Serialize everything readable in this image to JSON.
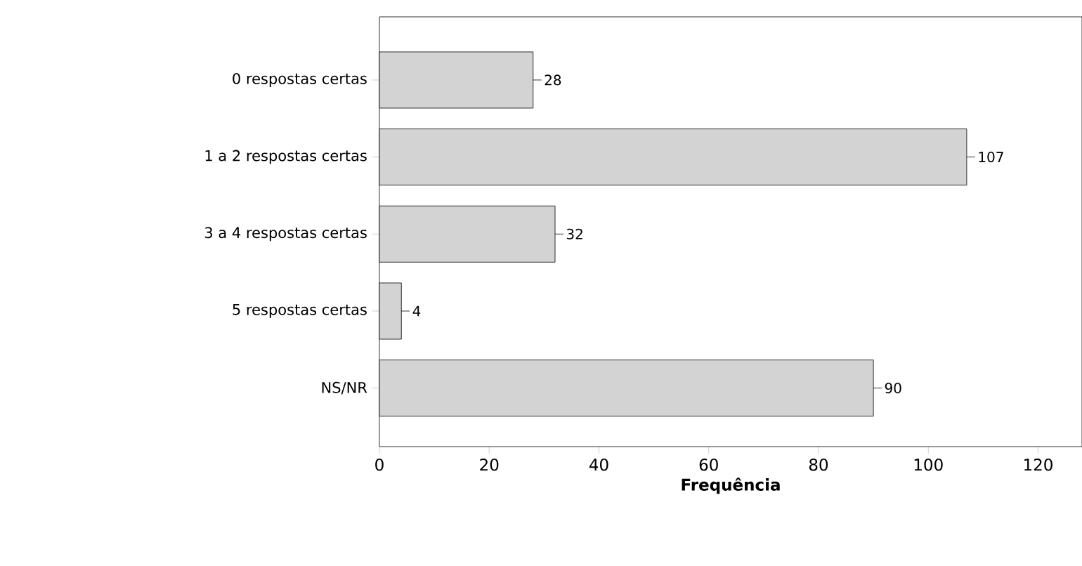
{
  "chart_data": {
    "type": "bar",
    "orientation": "horizontal",
    "xlabel": "Frequência",
    "categories": [
      "0 respostas certas",
      "1 a 2 respostas certas",
      "3 a 4 respostas certas",
      "5 respostas certas",
      "NS/NR"
    ],
    "values": [
      28,
      107,
      32,
      4,
      90
    ],
    "value_labels": [
      "28",
      "107",
      "32",
      "4",
      "90"
    ],
    "color": "#d3d3d3",
    "xlim": [
      0,
      128
    ],
    "xticks": [
      0,
      20,
      40,
      60,
      80,
      100,
      120
    ],
    "grid": false
  }
}
